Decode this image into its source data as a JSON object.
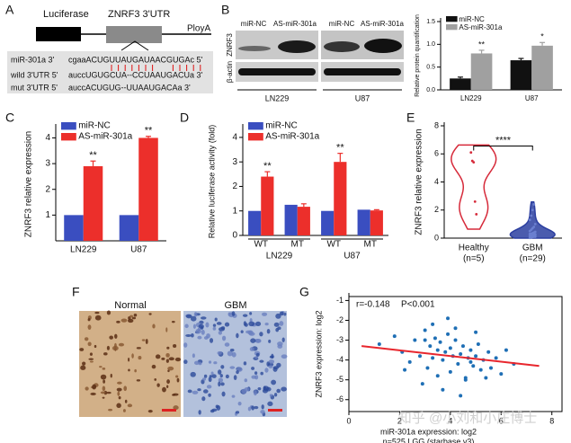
{
  "panel_labels": [
    "A",
    "B",
    "C",
    "D",
    "E",
    "F",
    "G"
  ],
  "construct": {
    "luciferase": "Luciferase",
    "utr": "ZNRF3 3'UTR",
    "polya": "PloyA"
  },
  "alignment": {
    "rows": [
      {
        "name": "miR-301a 3'",
        "seq": "cgaaACUGUUAUGAUAACGUGAc 5'"
      },
      {
        "name": "wild 3'UTR 5'",
        "seq": "auccUGUGCUA--CCUAAUGACUa 3'"
      },
      {
        "name": "mut 3'UTR 5'",
        "seq": "auccACUGUG--UUAAUGACAa 3'"
      }
    ]
  },
  "blot": {
    "proteins": [
      "ZNRF3",
      "β-actin"
    ],
    "lanes": [
      "miR-NC",
      "AS-miR-301a",
      "miR-NC",
      "AS-miR-301a"
    ],
    "cell_lines": [
      "LN229",
      "U87"
    ]
  },
  "ihc": {
    "titles": [
      "Normal",
      "GBM"
    ]
  },
  "watermark": "知乎 @小刘和小庄博士",
  "chart_data": [
    {
      "type": "bar",
      "ylabel": "Relative protein quantification",
      "categories": [
        "LN229",
        "U87"
      ],
      "series": [
        {
          "name": "miR-NC",
          "color": "#111111",
          "values": [
            0.25,
            0.65
          ],
          "errors": [
            0.03,
            0.04
          ]
        },
        {
          "name": "AS-miR-301a",
          "color": "#a0a0a0",
          "values": [
            0.8,
            0.97
          ],
          "errors": [
            0.07,
            0.07
          ]
        }
      ],
      "annotations": [
        "**",
        "*"
      ],
      "ylim": [
        0,
        1.5
      ],
      "yticks": [
        {
          "value": 0,
          "label": "0.0"
        },
        {
          "value": 0.5,
          "label": "0.5"
        },
        {
          "value": 1,
          "label": "1.0"
        },
        {
          "value": 1.5,
          "label": "1.5"
        }
      ],
      "legend": "upper left"
    },
    {
      "type": "bar",
      "ylabel": "ZNRF3 relative expression",
      "categories": [
        "LN229",
        "U87"
      ],
      "series": [
        {
          "name": "miR-NC",
          "color": "#3a4ec0",
          "values": [
            1.0,
            1.0
          ]
        },
        {
          "name": "AS-miR-301a",
          "color": "#ec2f2b",
          "values": [
            2.9,
            4.0
          ],
          "errors": [
            0.2,
            0.06
          ]
        }
      ],
      "annotations": [
        "**",
        "**"
      ],
      "ylim": [
        0,
        4.4
      ],
      "yticks": [
        1,
        2,
        3,
        4
      ],
      "legend": "upper left"
    },
    {
      "type": "bar",
      "ylabel": "Relative luciferase activity (fold)",
      "categories": [
        "WT",
        "MT",
        "WT",
        "MT"
      ],
      "groups": [
        "LN229",
        "U87"
      ],
      "series": [
        {
          "name": "miR-NC",
          "color": "#3a4ec0",
          "values": [
            1.0,
            1.25,
            1.0,
            1.05
          ]
        },
        {
          "name": "AS-miR-301a",
          "color": "#ec2f2b",
          "values": [
            2.4,
            1.17,
            3.0,
            1.02
          ],
          "errors": [
            0.2,
            0.12,
            0.35,
            0.03
          ]
        }
      ],
      "annotations": [
        "**",
        null,
        "**",
        null
      ],
      "ylim": [
        0,
        4.4
      ],
      "yticks": [
        0,
        1,
        2,
        3,
        4
      ],
      "legend": "upper left"
    },
    {
      "type": "violin",
      "ylabel": "ZNRF3 relative expression",
      "categories": [
        "Healthy",
        "GBM"
      ],
      "counts": [
        "(n=5)",
        "(n=29)"
      ],
      "colors": [
        "#d62a3a",
        "#2c3fa0"
      ],
      "values": [
        [
          6.1,
          5.5,
          5.4,
          2.6,
          1.7
        ],
        [
          0.02,
          0.05,
          0.08,
          0.1,
          0.1,
          0.12,
          0.15,
          0.15,
          0.18,
          0.2,
          0.2,
          0.22,
          0.25,
          0.25,
          0.28,
          0.3,
          0.3,
          0.35,
          0.4,
          0.45,
          0.5,
          0.6,
          0.7,
          0.8,
          1.0,
          1.3,
          1.6,
          2.0,
          2.4
        ]
      ],
      "annotation": "****",
      "ylim": [
        0,
        8
      ],
      "yticks": [
        0,
        2,
        4,
        6,
        8
      ]
    },
    {
      "type": "scatter",
      "xlabel": "miR-301a expression: log2",
      "ylabel": "ZNRF3 expression: log2",
      "caption": "n=525 LGG (starbase v3)",
      "annotations": [
        "r=-0.148",
        "P<0.001"
      ],
      "color": "#1f6fb5",
      "x": [
        1.2,
        1.8,
        2.1,
        2.4,
        2.6,
        2.8,
        3.0,
        3.1,
        3.2,
        3.3,
        3.4,
        3.5,
        3.5,
        3.6,
        3.7,
        3.8,
        3.9,
        4.0,
        4.0,
        4.1,
        4.2,
        4.3,
        4.4,
        4.5,
        4.6,
        4.7,
        4.8,
        4.9,
        5.0,
        5.1,
        5.2,
        5.3,
        5.5,
        5.6,
        5.8,
        6.0,
        6.2,
        6.5,
        2.9,
        3.3,
        3.7,
        4.2,
        4.6,
        5.0,
        5.4,
        3.0,
        4.4,
        3.9,
        4.8,
        2.2
      ],
      "y": [
        -3.2,
        -2.8,
        -3.6,
        -4.1,
        -3.0,
        -3.8,
        -2.5,
        -4.4,
        -3.3,
        -3.9,
        -2.9,
        -3.5,
        -4.8,
        -3.1,
        -4.0,
        -3.6,
        -2.7,
        -3.4,
        -4.6,
        -3.8,
        -3.0,
        -4.2,
        -3.7,
        -3.3,
        -4.9,
        -3.9,
        -3.5,
        -4.3,
        -3.8,
        -3.2,
        -4.5,
        -4.0,
        -3.6,
        -4.4,
        -3.9,
        -4.7,
        -3.5,
        -4.2,
        -5.2,
        -2.2,
        -5.5,
        -2.4,
        -5.0,
        -2.6,
        -4.9,
        -3.0,
        -5.8,
        -1.9,
        -4.1,
        -4.5
      ],
      "trendline": {
        "color": "#e8262d",
        "x": [
          0.5,
          7.5
        ],
        "y": [
          -3.3,
          -4.3
        ]
      },
      "xlim": [
        0,
        8.4
      ],
      "xticks": [
        0,
        2,
        4,
        6,
        8
      ],
      "ylim": [
        -6.6,
        -0.8
      ],
      "yticks": [
        -6,
        -5,
        -4,
        -3,
        -2,
        -1
      ]
    }
  ]
}
